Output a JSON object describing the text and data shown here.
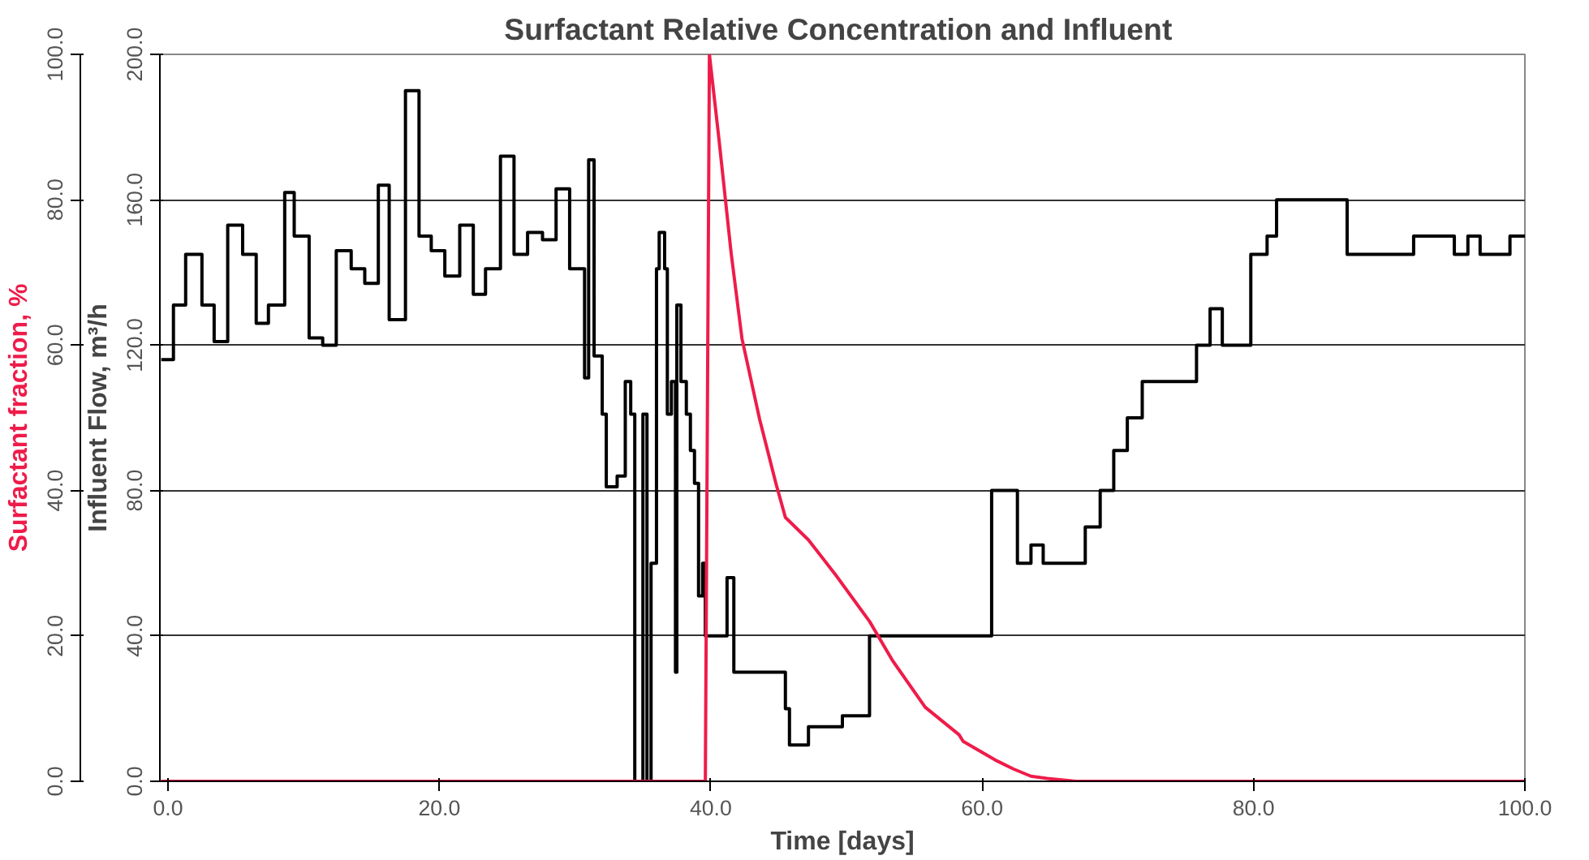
{
  "chart_data": {
    "type": "line",
    "title": "Surfactant Relative Concentration  and Influent",
    "xlabel": "Time [days]",
    "ylabel": "Influent Flow, m³/h",
    "y2label": "Surfactant fraction, %",
    "xlim": [
      -0.6,
      100
    ],
    "xticks": [
      {
        "value": 0,
        "label": "0.0"
      },
      {
        "value": 20,
        "label": "20.0"
      },
      {
        "value": 40,
        "label": "40.0"
      },
      {
        "value": 60,
        "label": "60.0"
      },
      {
        "value": 80,
        "label": "80.0"
      },
      {
        "value": 100,
        "label": "100.0"
      }
    ],
    "ylim": [
      0,
      200
    ],
    "yticks": [
      {
        "value": 0,
        "label": "0.0"
      },
      {
        "value": 40,
        "label": "40.0"
      },
      {
        "value": 80,
        "label": "80.0"
      },
      {
        "value": 120,
        "label": "120.0"
      },
      {
        "value": 160,
        "label": "160.0"
      },
      {
        "value": 200,
        "label": "200.0"
      }
    ],
    "y2lim": [
      0,
      100
    ],
    "y2ticks": [
      {
        "value": 0,
        "label": "0.0"
      },
      {
        "value": 20,
        "label": "20.0"
      },
      {
        "value": 40,
        "label": "40.0"
      },
      {
        "value": 60,
        "label": "60.0"
      },
      {
        "value": 80,
        "label": "80.0"
      },
      {
        "value": 100,
        "label": "100.0"
      }
    ],
    "grid": "y",
    "marker": "none",
    "line_style": "solid",
    "series": [
      {
        "type": "step",
        "color": "#000000",
        "x": [
          -0.5,
          0.4,
          1.3,
          2.5,
          3.4,
          4.4,
          5.5,
          6.5,
          7.4,
          8.6,
          9.3,
          10.4,
          11.4,
          12.4,
          13.5,
          14.5,
          15.5,
          16.3,
          17.5,
          18.5,
          19.4,
          20.4,
          21.5,
          22.5,
          23.4,
          24.5,
          25.5,
          26.5,
          27.6,
          28.6,
          29.6,
          30.7,
          31.0,
          31.4,
          32.0,
          32.3,
          33.1,
          33.7,
          34.1,
          34.4,
          35.0,
          35.3,
          35.6,
          36.0,
          36.2,
          36.6,
          36.8,
          37.1,
          37.4,
          37.5,
          37.8,
          38.2,
          38.5,
          38.8,
          39.1,
          39.4,
          39.6,
          41.2,
          41.7,
          45.5,
          45.8,
          47.2,
          49.7,
          51.7,
          60.7,
          62.6,
          63.6,
          64.5,
          67.6,
          68.7,
          69.7,
          70.7,
          71.8,
          75.8,
          76.8,
          77.7,
          79.8,
          81.0,
          81.7,
          86.9,
          91.8,
          94.8,
          95.8,
          96.7,
          98.9,
          100
        ],
        "values": [
          116,
          131,
          145,
          131,
          121,
          153,
          145,
          126,
          131,
          162,
          150,
          122,
          120,
          146,
          141,
          137,
          164,
          127,
          190,
          150,
          146,
          139,
          153,
          134,
          141,
          172,
          145,
          151,
          149,
          163,
          141,
          111,
          171,
          117,
          101,
          81,
          84,
          110,
          101,
          0,
          101,
          0,
          60,
          141,
          151,
          141,
          101,
          110,
          30,
          131,
          110,
          101,
          91,
          82,
          51,
          60,
          40,
          56,
          30,
          20,
          10,
          15,
          18,
          40,
          80,
          60,
          65,
          60,
          70,
          80,
          91,
          100,
          110,
          120,
          130,
          120,
          145,
          150,
          160,
          145,
          150,
          145,
          150,
          145,
          150,
          150
        ]
      },
      {
        "color": "#ee1c4a",
        "axis": "y2",
        "x": [
          -0.5,
          39.6,
          39.9,
          40.6,
          41.5,
          42.3,
          43.6,
          44.8,
          45.5,
          47.2,
          49.2,
          51.7,
          53.4,
          55.8,
          58.3,
          58.6,
          61.1,
          62.3,
          63.6,
          64.8,
          66.9,
          100
        ],
        "values": [
          0,
          0,
          100,
          88.4,
          72.7,
          60.9,
          49.8,
          41,
          36.3,
          33.2,
          28.4,
          22,
          16.6,
          10.2,
          6.4,
          5.5,
          2.8,
          1.7,
          0.7,
          0.4,
          0,
          0
        ]
      }
    ]
  }
}
